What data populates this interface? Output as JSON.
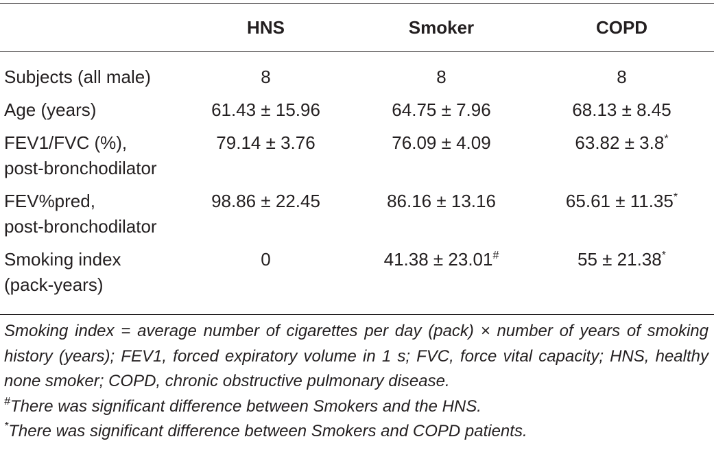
{
  "table": {
    "header": [
      "HNS",
      "Smoker",
      "COPD"
    ],
    "rows": [
      {
        "label": [
          "Subjects (all male)"
        ],
        "cells": [
          {
            "text": "8"
          },
          {
            "text": "8"
          },
          {
            "text": "8"
          }
        ]
      },
      {
        "label": [
          "Age (years)"
        ],
        "cells": [
          {
            "text": "61.43 ± 15.96"
          },
          {
            "text": "64.75 ± 7.96"
          },
          {
            "text": "68.13 ± 8.45"
          }
        ]
      },
      {
        "label": [
          "FEV1/FVC (%),",
          "post-bronchodilator"
        ],
        "cells": [
          {
            "text": "79.14 ± 3.76"
          },
          {
            "text": "76.09 ± 4.09"
          },
          {
            "text": "63.82 ± 3.8",
            "sup": "*"
          }
        ]
      },
      {
        "label": [
          "FEV%pred,",
          "post-bronchodilator"
        ],
        "cells": [
          {
            "text": "98.86 ± 22.45"
          },
          {
            "text": "86.16 ± 13.16"
          },
          {
            "text": "65.61 ± 11.35",
            "sup": "*"
          }
        ]
      },
      {
        "label": [
          "Smoking index",
          "(pack-years)"
        ],
        "cells": [
          {
            "text": "0"
          },
          {
            "text": "41.38 ± 23.01",
            "sup": "#"
          },
          {
            "text": "55 ± 21.38",
            "sup": "*"
          }
        ]
      }
    ]
  },
  "footnotes": {
    "definition": "Smoking index = average number of cigarettes per day (pack) × number of years of smoking history (years); FEV1, forced expiratory volume in 1 s; FVC, force vital capacity; HNS, healthy none smoker; COPD, chronic obstructive pulmonary disease.",
    "notes": [
      {
        "mark": "#",
        "text": "There was significant difference between Smokers and the HNS."
      },
      {
        "mark": "*",
        "text": "There was significant difference between Smokers and COPD patients."
      }
    ]
  }
}
